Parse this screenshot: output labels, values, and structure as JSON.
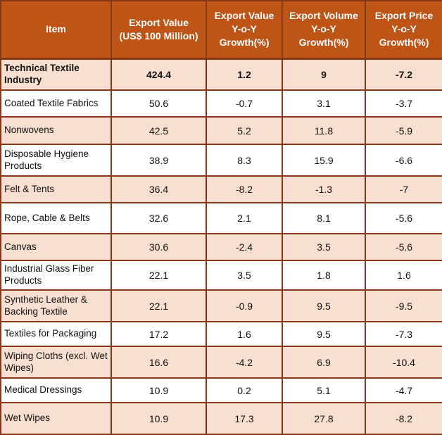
{
  "colors": {
    "header_bg": "#BF5417",
    "header_text": "#FFFFFF",
    "row_shaded": "#F9DFD0",
    "row_plain": "#FFFFFF",
    "border": "#873816",
    "text": "#111111"
  },
  "table": {
    "header": [
      "Item",
      "Export Value\n(US$ 100 Million)",
      "Export Value\nY-o-Y\nGrowth(%)",
      "Export Volume\nY-o-Y\nGrowth(%)",
      "Export Price\nY-o-Y\nGrowth(%)"
    ],
    "rows": [
      {
        "item": "Technical Textile Industry",
        "export_value": "424.4",
        "value_growth": "1.2",
        "volume_growth": "9",
        "price_growth": "-7.2",
        "bold": true,
        "shaded": true
      },
      {
        "item": "Coated Textile Fabrics",
        "export_value": "50.6",
        "value_growth": "-0.7",
        "volume_growth": "3.1",
        "price_growth": "-3.7",
        "bold": false,
        "shaded": false
      },
      {
        "item": "Nonwovens",
        "export_value": "42.5",
        "value_growth": "5.2",
        "volume_growth": "11.8",
        "price_growth": "-5.9",
        "bold": false,
        "shaded": true
      },
      {
        "item": "Disposable Hygiene Products",
        "export_value": "38.9",
        "value_growth": "8.3",
        "volume_growth": "15.9",
        "price_growth": "-6.6",
        "bold": false,
        "shaded": false
      },
      {
        "item": "Felt & Tents",
        "export_value": "36.4",
        "value_growth": "-8.2",
        "volume_growth": "-1.3",
        "price_growth": "-7",
        "bold": false,
        "shaded": true
      },
      {
        "item": "Rope, Cable & Belts",
        "export_value": "32.6",
        "value_growth": "2.1",
        "volume_growth": "8.1",
        "price_growth": "-5.6",
        "bold": false,
        "shaded": false
      },
      {
        "item": "Canvas",
        "export_value": "30.6",
        "value_growth": "-2.4",
        "volume_growth": "3.5",
        "price_growth": "-5.6",
        "bold": false,
        "shaded": true
      },
      {
        "item": "Industrial Glass Fiber Products",
        "export_value": "22.1",
        "value_growth": "3.5",
        "volume_growth": "1.8",
        "price_growth": "1.6",
        "bold": false,
        "shaded": false
      },
      {
        "item": "Synthetic Leather & Backing Textile",
        "export_value": "22.1",
        "value_growth": "-0.9",
        "volume_growth": "9.5",
        "price_growth": "-9.5",
        "bold": false,
        "shaded": true
      },
      {
        "item": "Textiles for Packaging",
        "export_value": "17.2",
        "value_growth": "1.6",
        "volume_growth": "9.5",
        "price_growth": "-7.3",
        "bold": false,
        "shaded": false
      },
      {
        "item": "Wiping Cloths (excl. Wet Wipes)",
        "export_value": "16.6",
        "value_growth": "-4.2",
        "volume_growth": "6.9",
        "price_growth": "-10.4",
        "bold": false,
        "shaded": true
      },
      {
        "item": "Medical Dressings",
        "export_value": "10.9",
        "value_growth": "0.2",
        "volume_growth": "5.1",
        "price_growth": "-4.7",
        "bold": false,
        "shaded": false
      },
      {
        "item": "Wet Wipes",
        "export_value": "10.9",
        "value_growth": "17.3",
        "volume_growth": "27.8",
        "price_growth": "-8.2",
        "bold": false,
        "shaded": true
      }
    ]
  },
  "chart_data": {
    "type": "table",
    "title": "",
    "columns": [
      "Item",
      "Export Value (US$ 100 Million)",
      "Export Value Y-o-Y Growth(%)",
      "Export Volume Y-o-Y Growth(%)",
      "Export Price Y-o-Y Growth(%)"
    ],
    "rows": [
      [
        "Technical Textile Industry",
        424.4,
        1.2,
        9,
        -7.2
      ],
      [
        "Coated Textile Fabrics",
        50.6,
        -0.7,
        3.1,
        -3.7
      ],
      [
        "Nonwovens",
        42.5,
        5.2,
        11.8,
        -5.9
      ],
      [
        "Disposable Hygiene Products",
        38.9,
        8.3,
        15.9,
        -6.6
      ],
      [
        "Felt & Tents",
        36.4,
        -8.2,
        -1.3,
        -7
      ],
      [
        "Rope, Cable & Belts",
        32.6,
        2.1,
        8.1,
        -5.6
      ],
      [
        "Canvas",
        30.6,
        -2.4,
        3.5,
        -5.6
      ],
      [
        "Industrial Glass Fiber Products",
        22.1,
        3.5,
        1.8,
        1.6
      ],
      [
        "Synthetic Leather & Backing Textile",
        22.1,
        -0.9,
        9.5,
        -9.5
      ],
      [
        "Textiles for Packaging",
        17.2,
        1.6,
        9.5,
        -7.3
      ],
      [
        "Wiping Cloths (excl. Wet Wipes)",
        16.6,
        -4.2,
        6.9,
        -10.4
      ],
      [
        "Medical Dressings",
        10.9,
        0.2,
        5.1,
        -4.7
      ],
      [
        "Wet Wipes",
        10.9,
        17.3,
        27.8,
        -8.2
      ]
    ]
  }
}
